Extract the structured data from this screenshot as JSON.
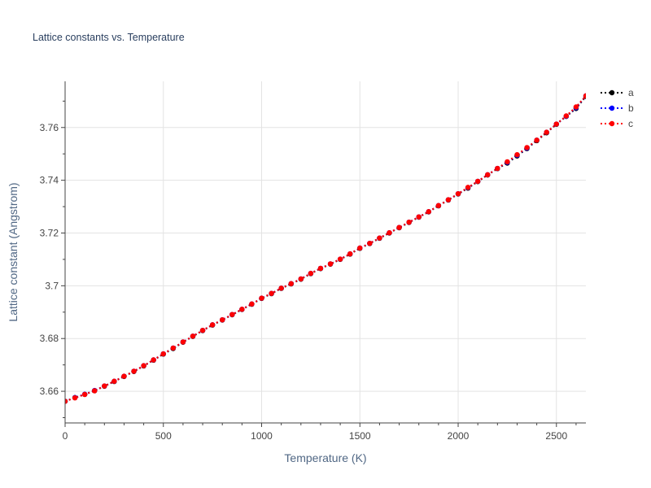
{
  "chart_data": {
    "type": "line",
    "title": "Lattice constants vs. Temperature",
    "xlabel": "Temperature (K)",
    "ylabel": "Lattice constant (Angstrom)",
    "xlim": [
      0,
      2650
    ],
    "ylim": [
      3.648,
      3.7775
    ],
    "xticks": [
      0,
      500,
      1000,
      1500,
      2000,
      2500
    ],
    "xtick_labels": [
      "0",
      "500",
      "1000",
      "1500",
      "2000",
      "2500"
    ],
    "yticks": [
      3.66,
      3.68,
      3.7,
      3.72,
      3.74,
      3.76
    ],
    "ytick_labels": [
      "3.66",
      "3.68",
      "3.7",
      "3.72",
      "3.74",
      "3.76"
    ],
    "grid": true,
    "legend_position": "top-right, outside plot",
    "x": [
      0,
      50,
      100,
      150,
      200,
      250,
      300,
      350,
      400,
      450,
      500,
      550,
      600,
      650,
      700,
      750,
      800,
      850,
      900,
      950,
      1000,
      1050,
      1100,
      1150,
      1200,
      1250,
      1300,
      1350,
      1400,
      1450,
      1500,
      1550,
      1600,
      1650,
      1700,
      1750,
      1800,
      1850,
      1900,
      1950,
      2000,
      2050,
      2100,
      2150,
      2200,
      2250,
      2300,
      2350,
      2400,
      2450,
      2500,
      2550,
      2600,
      2650
    ],
    "series": [
      {
        "name": "a",
        "color": "#000000",
        "values": [
          3.6562,
          3.6576,
          3.6588,
          3.6602,
          3.6619,
          3.6637,
          3.6656,
          3.6675,
          3.6696,
          3.6718,
          3.6741,
          3.6762,
          3.6786,
          3.6808,
          3.683,
          3.6851,
          3.687,
          3.689,
          3.691,
          3.693,
          3.6952,
          3.697,
          3.699,
          3.7007,
          3.7025,
          3.7046,
          3.7065,
          3.7082,
          3.71,
          3.712,
          3.7142,
          3.716,
          3.718,
          3.72,
          3.722,
          3.724,
          3.726,
          3.728,
          3.7303,
          3.7325,
          3.7348,
          3.737,
          3.7395,
          3.742,
          3.7444,
          3.7465,
          3.7492,
          3.752,
          3.755,
          3.758,
          3.7612,
          3.7642,
          3.7672,
          3.7718
        ]
      },
      {
        "name": "b",
        "color": "#0000ff",
        "values": [
          3.6562,
          3.6576,
          3.6589,
          3.6603,
          3.662,
          3.6638,
          3.6657,
          3.6676,
          3.6697,
          3.6719,
          3.6742,
          3.6764,
          3.6787,
          3.6809,
          3.6831,
          3.6852,
          3.6871,
          3.6891,
          3.6911,
          3.6931,
          3.6953,
          3.6971,
          3.6991,
          3.7008,
          3.7026,
          3.7047,
          3.7066,
          3.7083,
          3.7101,
          3.7121,
          3.7143,
          3.7161,
          3.7181,
          3.7201,
          3.7221,
          3.7241,
          3.7261,
          3.7281,
          3.7304,
          3.7326,
          3.7349,
          3.7372,
          3.7396,
          3.7421,
          3.7445,
          3.7468,
          3.7495,
          3.7522,
          3.7552,
          3.7582,
          3.7613,
          3.7643,
          3.7675,
          3.772
        ]
      },
      {
        "name": "c",
        "color": "#ff0000",
        "values": [
          3.6562,
          3.6575,
          3.6588,
          3.6602,
          3.662,
          3.6638,
          3.6657,
          3.6676,
          3.6697,
          3.6719,
          3.6742,
          3.6764,
          3.6787,
          3.6809,
          3.6831,
          3.6852,
          3.6871,
          3.6891,
          3.6911,
          3.6931,
          3.6953,
          3.6971,
          3.6991,
          3.7008,
          3.7026,
          3.7047,
          3.7066,
          3.7083,
          3.7101,
          3.7121,
          3.7143,
          3.7161,
          3.7181,
          3.7201,
          3.7221,
          3.7241,
          3.7261,
          3.7281,
          3.7304,
          3.7326,
          3.7349,
          3.7373,
          3.7396,
          3.7421,
          3.7445,
          3.747,
          3.7497,
          3.7524,
          3.7552,
          3.7582,
          3.7613,
          3.7644,
          3.7678,
          3.772
        ]
      }
    ]
  }
}
